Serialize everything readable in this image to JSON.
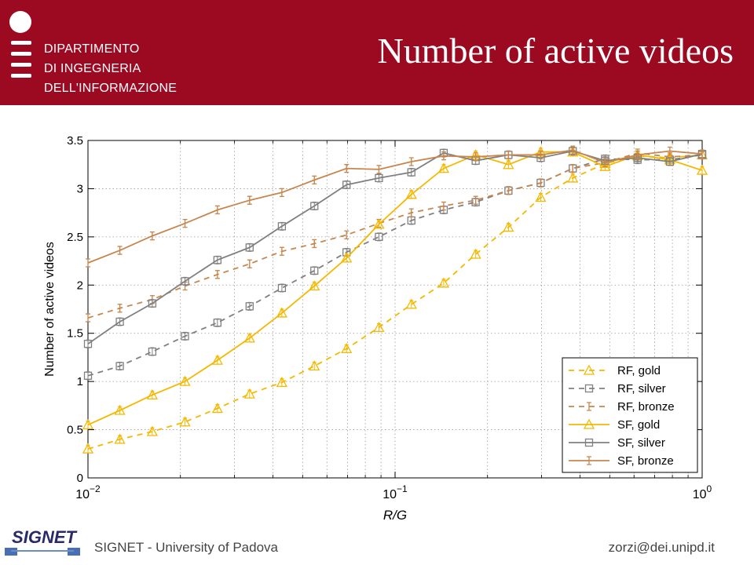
{
  "header": {
    "department_lines": [
      "DIPARTIMENTO",
      "DI INGEGNERIA",
      "DELL'INFORMAZIONE"
    ],
    "slide_title": "Number of active videos",
    "brand_color": "#9c0a22"
  },
  "footer": {
    "left_text": "SIGNET - University of Padova",
    "right_text": "zorzi@dei.unipd.it",
    "logo_text": "SIGNET"
  },
  "chart_data": {
    "type": "line",
    "title": "",
    "xlabel": "R/G",
    "ylabel": "Number of active videos",
    "xscale": "log",
    "xlim": [
      0.01,
      1
    ],
    "ylim": [
      0,
      3.5
    ],
    "xticks": [
      {
        "value": 0.01,
        "base": "10",
        "exp": "−2"
      },
      {
        "value": 0.1,
        "base": "10",
        "exp": "−1"
      },
      {
        "value": 1,
        "base": "10",
        "exp": "0"
      }
    ],
    "yticks": [
      "0",
      "0.5",
      "1",
      "1.5",
      "2",
      "2.5",
      "3",
      "3.5"
    ],
    "grid": true,
    "legend_position": "bottom-right",
    "x": [
      0.01,
      0.0127,
      0.0162,
      0.0207,
      0.0264,
      0.0336,
      0.0428,
      0.0546,
      0.0695,
      0.0886,
      0.113,
      0.144,
      0.183,
      0.234,
      0.298,
      0.379,
      0.483,
      0.616,
      0.785,
      1.0
    ],
    "series": [
      {
        "name": "RF, gold",
        "color": "#f5b800",
        "dash": true,
        "marker": "triangle",
        "values": [
          0.3,
          0.4,
          0.48,
          0.58,
          0.72,
          0.87,
          0.99,
          1.16,
          1.34,
          1.56,
          1.8,
          2.02,
          2.32,
          2.6,
          2.91,
          3.11,
          3.26,
          3.34,
          3.32,
          3.35
        ]
      },
      {
        "name": "RF, silver",
        "color": "#808080",
        "dash": true,
        "marker": "square",
        "values": [
          1.06,
          1.16,
          1.31,
          1.47,
          1.61,
          1.78,
          1.97,
          2.15,
          2.34,
          2.5,
          2.67,
          2.78,
          2.86,
          2.98,
          3.06,
          3.21,
          3.31,
          3.3,
          3.3,
          3.35
        ]
      },
      {
        "name": "RF, bronze",
        "color": "#c8864e",
        "dash": true,
        "marker": "errorbar",
        "values": [
          1.66,
          1.76,
          1.85,
          1.99,
          2.11,
          2.22,
          2.35,
          2.43,
          2.52,
          2.64,
          2.75,
          2.82,
          2.88,
          2.98,
          3.06,
          3.21,
          3.27,
          3.37,
          3.33,
          3.35
        ]
      },
      {
        "name": "SF, gold",
        "color": "#f5b800",
        "dash": false,
        "marker": "triangle",
        "values": [
          0.55,
          0.7,
          0.86,
          1.0,
          1.22,
          1.45,
          1.71,
          1.99,
          2.28,
          2.63,
          2.94,
          3.21,
          3.35,
          3.25,
          3.38,
          3.38,
          3.23,
          3.35,
          3.3,
          3.19
        ]
      },
      {
        "name": "SF, silver",
        "color": "#808080",
        "dash": false,
        "marker": "square",
        "values": [
          1.39,
          1.62,
          1.81,
          2.04,
          2.26,
          2.39,
          2.61,
          2.82,
          3.04,
          3.11,
          3.17,
          3.37,
          3.29,
          3.35,
          3.32,
          3.39,
          3.29,
          3.32,
          3.28,
          3.36
        ]
      },
      {
        "name": "SF, bronze",
        "color": "#c8864e",
        "dash": false,
        "marker": "errorbar",
        "values": [
          2.23,
          2.36,
          2.51,
          2.64,
          2.78,
          2.88,
          2.96,
          3.09,
          3.21,
          3.2,
          3.28,
          3.34,
          3.33,
          3.35,
          3.35,
          3.4,
          3.27,
          3.35,
          3.39,
          3.36
        ]
      }
    ]
  }
}
